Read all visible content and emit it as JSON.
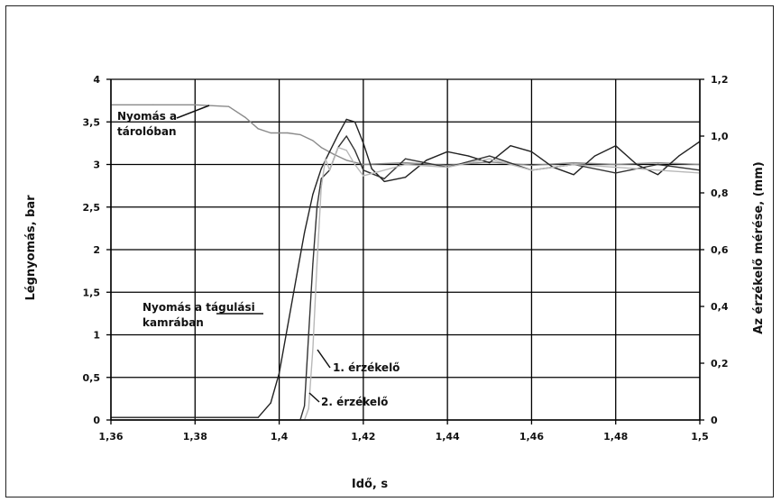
{
  "chart_data": {
    "type": "line",
    "title": "",
    "xlabel": "Idő, s",
    "ylabel_left": "Légnyomás, bar",
    "ylabel_right": "Az érzékelő mérése, (mm)",
    "xlim": [
      1.36,
      1.5
    ],
    "ylim_left": [
      0,
      4
    ],
    "ylim_right": [
      0,
      1.2
    ],
    "grid": true,
    "x_ticks": [
      "1,36",
      "1,38",
      "1,4",
      "1,42",
      "1,44",
      "1,46",
      "1,48",
      "1,5"
    ],
    "y_left_ticks": [
      "0",
      "0,5",
      "1",
      "1,5",
      "2",
      "2,5",
      "3",
      "3,5",
      "4"
    ],
    "y_right_ticks": [
      "0",
      "0,2",
      "0,4",
      "0,6",
      "0,8",
      "1,0",
      "1,2"
    ],
    "annotations": [
      {
        "lines": [
          "Nyomás a",
          "tárolóban"
        ]
      },
      {
        "lines": [
          "Nyomás a tágulási",
          "kamrában"
        ]
      },
      {
        "lines": [
          "1. érzékelő"
        ]
      },
      {
        "lines": [
          "2. érzékelő"
        ]
      }
    ],
    "series": [
      {
        "axis": "left",
        "color": "#8a8a8a",
        "x": [
          1.36,
          1.37,
          1.38,
          1.388,
          1.392,
          1.395,
          1.398,
          1.402,
          1.405,
          1.408,
          1.41,
          1.413,
          1.416,
          1.42,
          1.43,
          1.44,
          1.45,
          1.46,
          1.47,
          1.48,
          1.49,
          1.5
        ],
        "y": [
          3.7,
          3.7,
          3.7,
          3.68,
          3.55,
          3.42,
          3.37,
          3.37,
          3.35,
          3.28,
          3.2,
          3.12,
          3.05,
          3.0,
          3.02,
          2.99,
          3.03,
          2.99,
          3.02,
          3.0,
          3.02,
          3.0
        ]
      },
      {
        "axis": "left",
        "color": "#222222",
        "x": [
          1.36,
          1.395,
          1.398,
          1.4,
          1.402,
          1.404,
          1.406,
          1.408,
          1.41,
          1.412,
          1.414,
          1.416,
          1.418,
          1.42,
          1.422,
          1.425,
          1.43,
          1.435,
          1.44,
          1.445,
          1.45,
          1.455,
          1.46,
          1.465,
          1.47,
          1.475,
          1.48,
          1.485,
          1.49,
          1.495,
          1.5
        ],
        "y": [
          0.03,
          0.03,
          0.2,
          0.55,
          1.1,
          1.65,
          2.2,
          2.65,
          2.95,
          3.15,
          3.35,
          3.53,
          3.5,
          3.25,
          2.95,
          2.8,
          2.85,
          3.05,
          3.15,
          3.1,
          3.02,
          3.22,
          3.15,
          2.97,
          2.88,
          3.1,
          3.22,
          3.0,
          2.88,
          3.1,
          3.27
        ]
      },
      {
        "axis": "right",
        "color": "#333333",
        "x": [
          1.36,
          1.405,
          1.406,
          1.407,
          1.408,
          1.409,
          1.41,
          1.412,
          1.414,
          1.416,
          1.418,
          1.42,
          1.425,
          1.43,
          1.44,
          1.45,
          1.46,
          1.47,
          1.48,
          1.49,
          1.5
        ],
        "y": [
          0.0,
          0.0,
          0.05,
          0.3,
          0.55,
          0.75,
          0.85,
          0.88,
          0.96,
          1.0,
          0.95,
          0.88,
          0.85,
          0.92,
          0.89,
          0.93,
          0.88,
          0.9,
          0.87,
          0.9,
          0.88
        ]
      },
      {
        "axis": "right",
        "color": "#b8b8b8",
        "x": [
          1.36,
          1.406,
          1.407,
          1.408,
          1.409,
          1.41,
          1.411,
          1.412,
          1.414,
          1.416,
          1.418,
          1.42,
          1.43,
          1.44,
          1.45,
          1.46,
          1.47,
          1.48,
          1.49,
          1.5
        ],
        "y": [
          0.0,
          0.0,
          0.04,
          0.25,
          0.55,
          0.82,
          0.92,
          0.88,
          0.96,
          0.95,
          0.9,
          0.86,
          0.9,
          0.89,
          0.92,
          0.88,
          0.9,
          0.89,
          0.88,
          0.87
        ]
      }
    ]
  }
}
